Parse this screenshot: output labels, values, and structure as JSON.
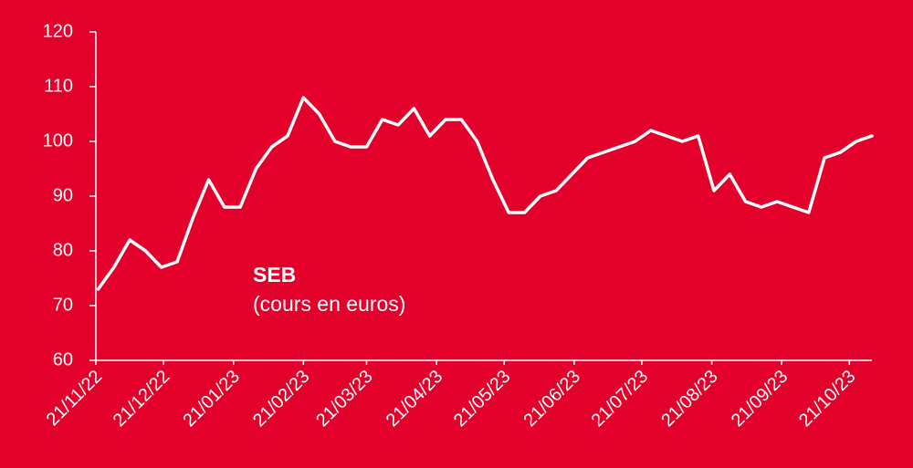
{
  "chart_data": {
    "type": "line",
    "annotations": [
      "SEB",
      "(cours en euros)"
    ],
    "x": [
      "22/11/22",
      "29/11/22",
      "06/12/22",
      "13/12/22",
      "20/12/22",
      "27/12/22",
      "03/01/23",
      "10/01/23",
      "17/01/23",
      "24/01/23",
      "31/01/23",
      "07/02/23",
      "14/02/23",
      "21/02/23",
      "28/02/23",
      "07/03/23",
      "14/03/23",
      "21/03/23",
      "28/03/23",
      "04/04/23",
      "11/04/23",
      "18/04/23",
      "25/04/23",
      "02/05/23",
      "09/05/23",
      "16/05/23",
      "23/05/23",
      "30/05/23",
      "06/06/23",
      "13/06/23",
      "20/06/23",
      "27/06/23",
      "04/07/23",
      "11/07/23",
      "18/07/23",
      "25/07/23",
      "01/08/23",
      "08/08/23",
      "15/08/23",
      "22/08/23",
      "29/08/23",
      "05/09/23",
      "12/09/23",
      "19/09/23",
      "26/09/23",
      "03/10/23",
      "10/10/23",
      "17/10/23",
      "24/10/23",
      "31/10/23"
    ],
    "series": [
      {
        "name": "SEB",
        "color": "#ffffff",
        "values": [
          73,
          77,
          82,
          80,
          77,
          78,
          86,
          93,
          88,
          88,
          95,
          99,
          101,
          108,
          105,
          100,
          99,
          99,
          104,
          103,
          106,
          101,
          104,
          104,
          100,
          93,
          87,
          87,
          90,
          91,
          94,
          97,
          98,
          99,
          100,
          102,
          101,
          100,
          101,
          91,
          94,
          89,
          88,
          89,
          88,
          87,
          97,
          98,
          100,
          101
        ]
      }
    ],
    "xlim": [
      "21/11/22",
      "31/10/23"
    ],
    "xticks": [
      "21/11/22",
      "21/12/22",
      "21/01/23",
      "21/02/23",
      "21/03/23",
      "21/04/23",
      "21/05/23",
      "21/06/23",
      "21/07/23",
      "21/08/23",
      "21/09/23",
      "21/10/23"
    ],
    "ylim": [
      60,
      120
    ],
    "yticks": [
      60,
      70,
      80,
      90,
      100,
      110,
      120
    ]
  }
}
